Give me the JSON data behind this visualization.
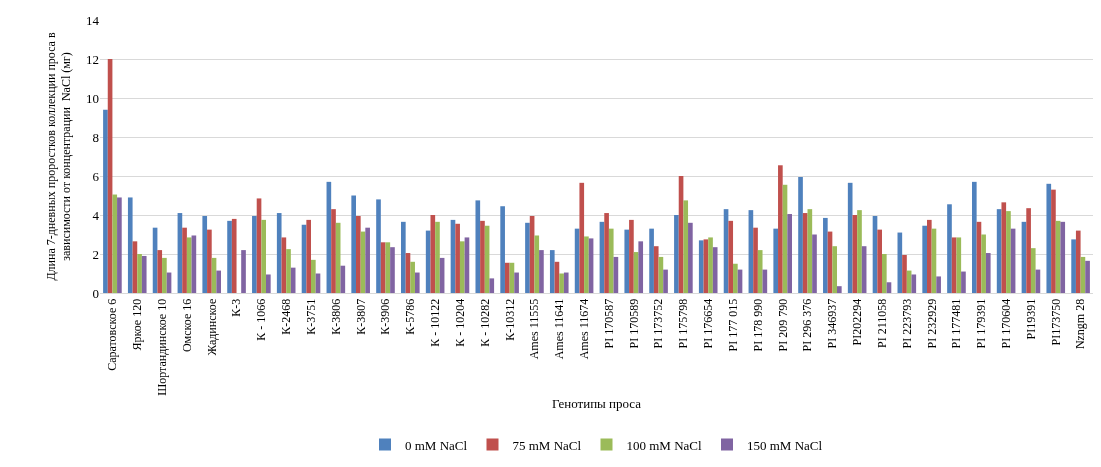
{
  "chart_data": {
    "type": "bar",
    "xlabel": "Генотипы проса",
    "ylabel": "Длина 7-дневных проростков коллекции проса в\nзависимости от концентрации  NaCl (мг)",
    "categories": [
      "Саратовское 6",
      "Яркое 120",
      "Шортандинское 10",
      "Омское 16",
      "Жадинское",
      "К-3",
      "К - 1066",
      "К-2468",
      "К-3751",
      "К-3806",
      "К-3807",
      "К-3906",
      "К-5786",
      "К - 10122",
      "К - 10204",
      "К - 10282",
      "К-10312",
      "Ames 11555",
      "Ames 11641",
      "Ames 11674",
      "PI 170587",
      "PI 170589",
      "PI 173752",
      "PI 175798",
      "PI 176654",
      "PI 177 015",
      "PI 178 990",
      "PI 209 790",
      "PI 296 376",
      "PI 346937",
      "PI202294",
      "PI 211058",
      "PI 223793",
      "PI 232929",
      "PI 177481",
      "PI 179391",
      "PI 170604",
      "PI19391",
      "PI173750",
      "Nzngm 28"
    ],
    "series": [
      {
        "name": "0 mM NaCl",
        "color": "#4f81bd",
        "values": [
          9.4,
          4.9,
          3.35,
          4.1,
          3.95,
          3.7,
          3.95,
          4.1,
          3.5,
          5.7,
          5.0,
          4.8,
          3.65,
          3.2,
          3.75,
          4.75,
          4.45,
          3.6,
          2.2,
          3.3,
          3.65,
          3.25,
          3.3,
          4.0,
          2.7,
          4.3,
          4.25,
          3.3,
          5.95,
          3.85,
          5.65,
          3.95,
          3.1,
          3.45,
          4.55,
          5.7,
          4.3,
          3.65,
          5.6,
          2.75
        ]
      },
      {
        "name": "75 mM NaCl",
        "color": "#c0504d",
        "values": [
          12.0,
          2.65,
          2.2,
          3.35,
          3.25,
          3.8,
          4.85,
          2.85,
          3.75,
          4.3,
          3.95,
          2.6,
          2.05,
          4.0,
          3.55,
          3.7,
          1.55,
          3.95,
          1.6,
          5.65,
          4.1,
          3.75,
          2.4,
          6.0,
          2.75,
          3.7,
          3.35,
          6.55,
          4.1,
          3.15,
          4.0,
          3.25,
          1.95,
          3.75,
          2.85,
          3.65,
          4.65,
          4.35,
          5.3,
          3.2
        ]
      },
      {
        "name": "100 mM NaCl",
        "color": "#9bbb59",
        "values": [
          5.05,
          2.0,
          1.8,
          2.85,
          1.8,
          null,
          3.75,
          2.25,
          1.7,
          3.6,
          3.15,
          2.6,
          1.6,
          3.65,
          2.65,
          3.45,
          1.55,
          2.95,
          1.0,
          2.9,
          3.3,
          2.1,
          1.85,
          4.75,
          2.85,
          1.5,
          2.2,
          5.55,
          4.3,
          2.4,
          4.25,
          2.0,
          1.15,
          3.3,
          2.85,
          3.0,
          4.2,
          2.3,
          3.7,
          1.85
        ]
      },
      {
        "name": "150 mM NaCl",
        "color": "#8064a2",
        "values": [
          4.9,
          1.9,
          1.05,
          2.95,
          1.15,
          2.2,
          0.95,
          1.3,
          1.0,
          1.4,
          3.35,
          2.35,
          1.05,
          1.8,
          2.85,
          0.75,
          1.05,
          2.2,
          1.05,
          2.8,
          1.85,
          2.65,
          1.2,
          3.6,
          2.35,
          1.2,
          1.2,
          4.05,
          3.0,
          0.35,
          2.4,
          0.55,
          0.95,
          0.85,
          1.1,
          2.05,
          3.3,
          1.2,
          3.65,
          1.65
        ]
      }
    ],
    "ylim": [
      0,
      14
    ],
    "yticks": [
      0,
      2,
      4,
      6,
      8,
      10,
      12,
      14
    ],
    "grid": "y",
    "legend": "bottom"
  }
}
